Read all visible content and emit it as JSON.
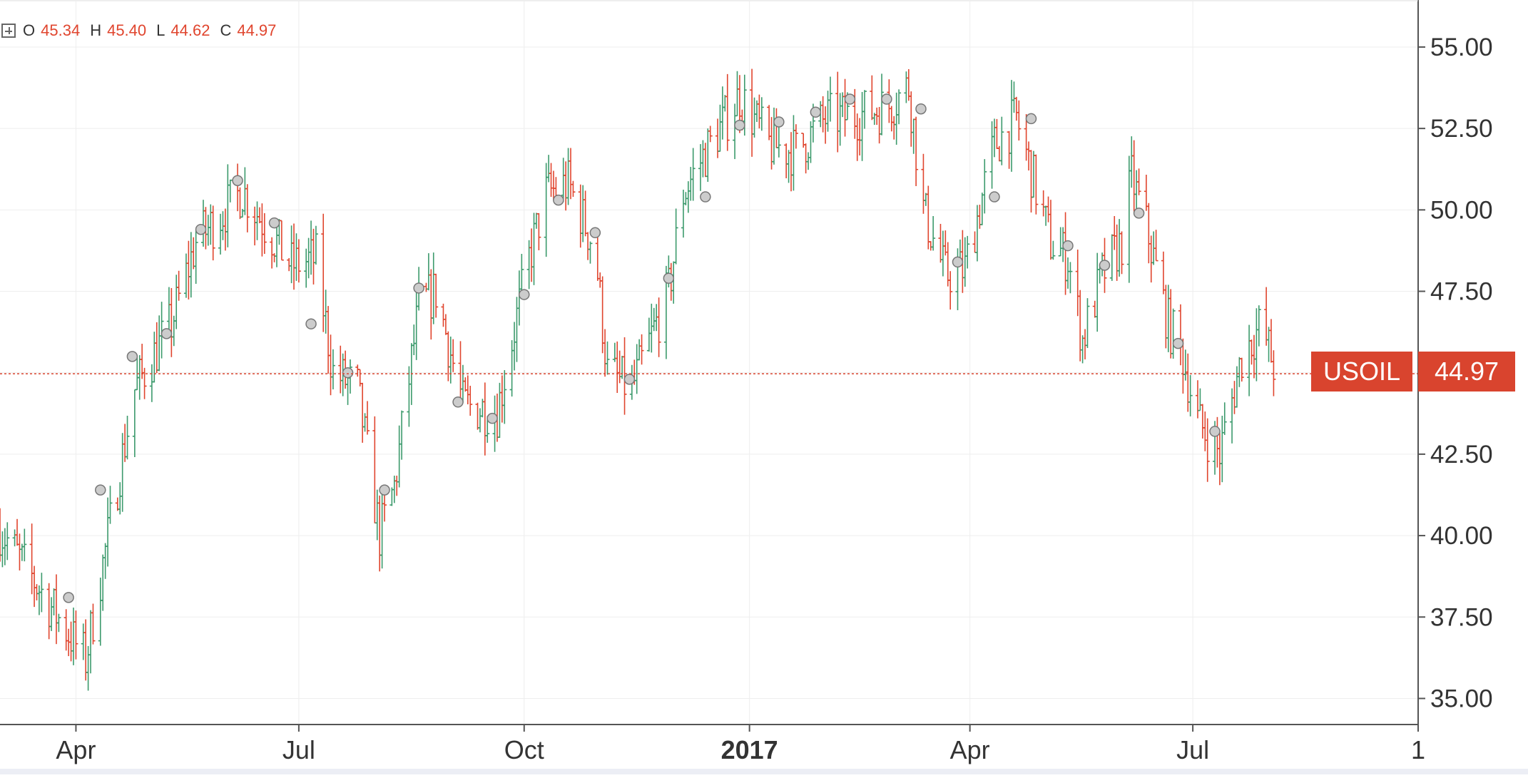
{
  "legend": {
    "open_label": "O",
    "open_value": "45.34",
    "high_label": "H",
    "high_value": "45.40",
    "low_label": "L",
    "low_value": "44.62",
    "close_label": "C",
    "close_value": "44.97"
  },
  "price_tag": {
    "symbol": "USOIL",
    "last": "44.97"
  },
  "colors": {
    "up": "#3c9a6c",
    "down": "#e0452e",
    "grid": "#eeeeee",
    "axis": "#555555",
    "price_line": "#d9442e",
    "marker": "#cccccc"
  },
  "chart_data": {
    "type": "ohlc-bar",
    "symbol": "USOIL",
    "x_start": "2016-03-01",
    "x_end": "2017-10-01",
    "ylim": [
      34.2,
      56.4
    ],
    "y_ticks": [
      "35.00",
      "37.50",
      "40.00",
      "42.50",
      "45.00",
      "47.50",
      "50.00",
      "52.50",
      "55.00"
    ],
    "x_ticks": [
      {
        "date": "2016-04-01",
        "label": "Apr",
        "bold": false
      },
      {
        "date": "2016-07-01",
        "label": "Jul",
        "bold": false
      },
      {
        "date": "2016-10-01",
        "label": "Oct",
        "bold": false
      },
      {
        "date": "2017-01-01",
        "label": "2017",
        "bold": true
      },
      {
        "date": "2017-04-01",
        "label": "Apr",
        "bold": false
      },
      {
        "date": "2017-07-01",
        "label": "Jul",
        "bold": false
      },
      {
        "date": "2017-10-01",
        "label": "1",
        "bold": false
      }
    ],
    "last_price": 44.97,
    "grid": true,
    "markers": [
      {
        "date": "2016-03-29",
        "value": 38.1
      },
      {
        "date": "2016-04-11",
        "value": 41.4
      },
      {
        "date": "2016-04-24",
        "value": 45.5
      },
      {
        "date": "2016-05-08",
        "value": 46.2
      },
      {
        "date": "2016-05-22",
        "value": 49.4
      },
      {
        "date": "2016-06-06",
        "value": 50.9
      },
      {
        "date": "2016-06-21",
        "value": 49.6
      },
      {
        "date": "2016-07-06",
        "value": 46.5
      },
      {
        "date": "2016-07-21",
        "value": 45.0
      },
      {
        "date": "2016-08-05",
        "value": 41.4
      },
      {
        "date": "2016-08-19",
        "value": 47.6
      },
      {
        "date": "2016-09-04",
        "value": 44.1
      },
      {
        "date": "2016-09-18",
        "value": 43.6
      },
      {
        "date": "2016-10-01",
        "value": 47.4
      },
      {
        "date": "2016-10-15",
        "value": 50.3
      },
      {
        "date": "2016-10-30",
        "value": 49.3
      },
      {
        "date": "2016-11-13",
        "value": 44.8
      },
      {
        "date": "2016-11-29",
        "value": 47.9
      },
      {
        "date": "2016-12-14",
        "value": 50.4
      },
      {
        "date": "2016-12-28",
        "value": 52.6
      },
      {
        "date": "2017-01-13",
        "value": 52.7
      },
      {
        "date": "2017-01-28",
        "value": 53.0
      },
      {
        "date": "2017-02-11",
        "value": 53.4
      },
      {
        "date": "2017-02-26",
        "value": 53.4
      },
      {
        "date": "2017-03-12",
        "value": 53.1
      },
      {
        "date": "2017-03-27",
        "value": 48.4
      },
      {
        "date": "2017-04-11",
        "value": 50.4
      },
      {
        "date": "2017-04-26",
        "value": 52.8
      },
      {
        "date": "2017-05-11",
        "value": 48.9
      },
      {
        "date": "2017-05-26",
        "value": 48.3
      },
      {
        "date": "2017-06-09",
        "value": 49.9
      },
      {
        "date": "2017-06-25",
        "value": 45.9
      },
      {
        "date": "2017-07-10",
        "value": 43.2
      }
    ],
    "bars": []
  }
}
